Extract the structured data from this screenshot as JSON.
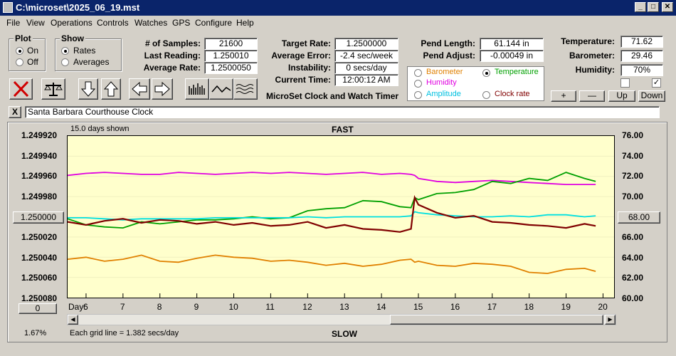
{
  "window": {
    "title": "C:\\microset\\2025_06_19.mst"
  },
  "menu": [
    "File",
    "View",
    "Operations",
    "Controls",
    "Watches",
    "GPS",
    "Configure",
    "Help"
  ],
  "plot_group": {
    "label": "Plot",
    "on": "On",
    "off": "Off",
    "selected": "On"
  },
  "show_group": {
    "label": "Show",
    "rates": "Rates",
    "averages": "Averages",
    "selected": "Rates"
  },
  "stats": {
    "samples_label": "# of Samples:",
    "samples": "21600",
    "last_reading_label": "Last Reading:",
    "last_reading": "1.250010",
    "average_rate_label": "Average Rate:",
    "average_rate": "1.2500050",
    "target_rate_label": "Target Rate:",
    "target_rate": "1.2500000",
    "average_error_label": "Average Error:",
    "average_error": "-2.4 sec/week",
    "instability_label": "Instability:",
    "instability": "0 secs/day",
    "current_time_label": "Current Time:",
    "current_time": "12:00:12 AM",
    "pend_length_label": "Pend Length:",
    "pend_length": "61.144 in",
    "pend_adjust_label": "Pend Adjust:",
    "pend_adjust": "-0.00049 in",
    "temperature_label": "Temperature:",
    "temperature": "71.62",
    "barometer_label": "Barometer:",
    "barometer": "29.46",
    "humidity_label": "Humidity:",
    "humidity": "70%"
  },
  "app_caption": "MicroSet Clock and Watch Timer",
  "sensor_options": {
    "barometer": "Barometer",
    "temperature": "Temperature",
    "humidity": "Humidity",
    "amplitude": "Amplitude",
    "clock_rate": "Clock rate",
    "selected": "Temperature"
  },
  "checkboxes": {
    "left": false,
    "right": true,
    "right_mark": "✓"
  },
  "adjust_buttons": {
    "plus": "+",
    "minus": "—",
    "up": "Up",
    "down": "Down"
  },
  "toolbar_icons": [
    "cancel-icon",
    "balance-icon",
    "arrow-down-icon",
    "arrow-up-icon",
    "arrow-left-icon",
    "arrow-right-icon",
    "bar-chart-icon",
    "wave-icon",
    "multi-wave-icon"
  ],
  "clock_name": {
    "close": "X",
    "value": "Santa Barbara Courthouse Clock"
  },
  "graph": {
    "days_shown": "15.0 days shown",
    "fast_label": "FAST",
    "slow_label": "SLOW",
    "day_label": "Day:",
    "grid_note": "Each grid line = 1.382 secs/day",
    "percent": "1.67%",
    "left_button": "1.250000",
    "right_button": "68.00",
    "bottom_button": "0"
  },
  "colors": {
    "rate": "#800000",
    "temperature": "#00a000",
    "humidity": "#e000e0",
    "barometer": "#e08000",
    "amplitude": "#00e0e0",
    "plot_bg": "#ffffcc"
  },
  "chart_data": {
    "type": "line",
    "x": [
      5.5,
      6,
      6.5,
      7,
      7.5,
      8,
      8.5,
      9,
      9.5,
      10,
      10.5,
      11,
      11.5,
      12,
      12.5,
      13,
      13.5,
      14,
      14.5,
      14.8,
      14.9,
      15,
      15.5,
      16,
      16.5,
      17,
      17.5,
      18,
      18.5,
      19,
      19.5,
      19.8
    ],
    "x_ticks": [
      "6",
      "7",
      "8",
      "9",
      "10",
      "11",
      "12",
      "13",
      "14",
      "15",
      "16",
      "17",
      "18",
      "19",
      "20"
    ],
    "xlim": [
      5.5,
      20.3
    ],
    "y_left": {
      "ticks": [
        "1.249920",
        "1.249940",
        "1.249960",
        "1.249980",
        "1.250000",
        "1.250020",
        "1.250040",
        "1.250060",
        "1.250080"
      ],
      "ylim_top": 1.24992,
      "ylim_bottom": 1.25008
    },
    "y_right": {
      "ticks": [
        "76.00",
        "74.00",
        "72.00",
        "70.00",
        "68.00",
        "66.00",
        "64.00",
        "62.00",
        "60.00"
      ],
      "ylim": [
        60,
        76
      ]
    },
    "series": [
      {
        "name": "Rate",
        "axis": "left",
        "values": [
          1.250005,
          1.250008,
          1.250004,
          1.250002,
          1.250006,
          1.250003,
          1.250004,
          1.250007,
          1.250005,
          1.250008,
          1.250006,
          1.250009,
          1.250008,
          1.250005,
          1.250011,
          1.250008,
          1.250012,
          1.250013,
          1.250015,
          1.250012,
          1.249981,
          1.249988,
          1.249996,
          1.250001,
          1.249999,
          1.250005,
          1.250006,
          1.250008,
          1.250009,
          1.250011,
          1.250007,
          1.250009
        ]
      },
      {
        "name": "Temperature",
        "axis": "right",
        "values": [
          67.8,
          67.2,
          67.0,
          66.9,
          67.5,
          67.3,
          67.5,
          67.7,
          67.7,
          67.8,
          68.0,
          67.8,
          67.9,
          68.6,
          68.8,
          68.9,
          69.6,
          69.5,
          69.0,
          68.9,
          69.9,
          69.7,
          70.3,
          70.4,
          70.7,
          71.5,
          71.3,
          71.8,
          71.6,
          72.4,
          71.8,
          71.5
        ]
      },
      {
        "name": "Humidity",
        "axis": "right",
        "values": [
          72.1,
          72.3,
          72.4,
          72.3,
          72.2,
          72.2,
          72.4,
          72.3,
          72.2,
          72.3,
          72.4,
          72.3,
          72.4,
          72.3,
          72.2,
          72.3,
          72.4,
          72.2,
          72.3,
          72.2,
          72.1,
          71.8,
          71.5,
          71.4,
          71.5,
          71.6,
          71.5,
          71.4,
          71.3,
          71.2,
          71.2,
          71.2
        ]
      },
      {
        "name": "Barometer",
        "axis": "right",
        "values": [
          63.8,
          64.0,
          63.6,
          63.8,
          64.2,
          63.6,
          63.5,
          63.9,
          64.2,
          64.0,
          63.9,
          63.6,
          63.7,
          63.5,
          63.2,
          63.4,
          63.1,
          63.3,
          63.7,
          63.8,
          63.5,
          63.6,
          63.2,
          63.1,
          63.4,
          63.3,
          63.1,
          62.5,
          62.4,
          62.8,
          62.9,
          62.6
        ]
      },
      {
        "name": "Amplitude",
        "axis": "right",
        "values": [
          67.9,
          67.9,
          67.8,
          67.7,
          67.8,
          67.8,
          67.8,
          67.8,
          67.9,
          67.9,
          67.9,
          67.9,
          67.9,
          68.0,
          67.9,
          68.0,
          68.0,
          68.0,
          68.0,
          68.1,
          68.5,
          68.4,
          68.2,
          68.1,
          68.0,
          68.0,
          68.1,
          68.0,
          68.2,
          68.2,
          68.0,
          68.1
        ]
      }
    ]
  }
}
